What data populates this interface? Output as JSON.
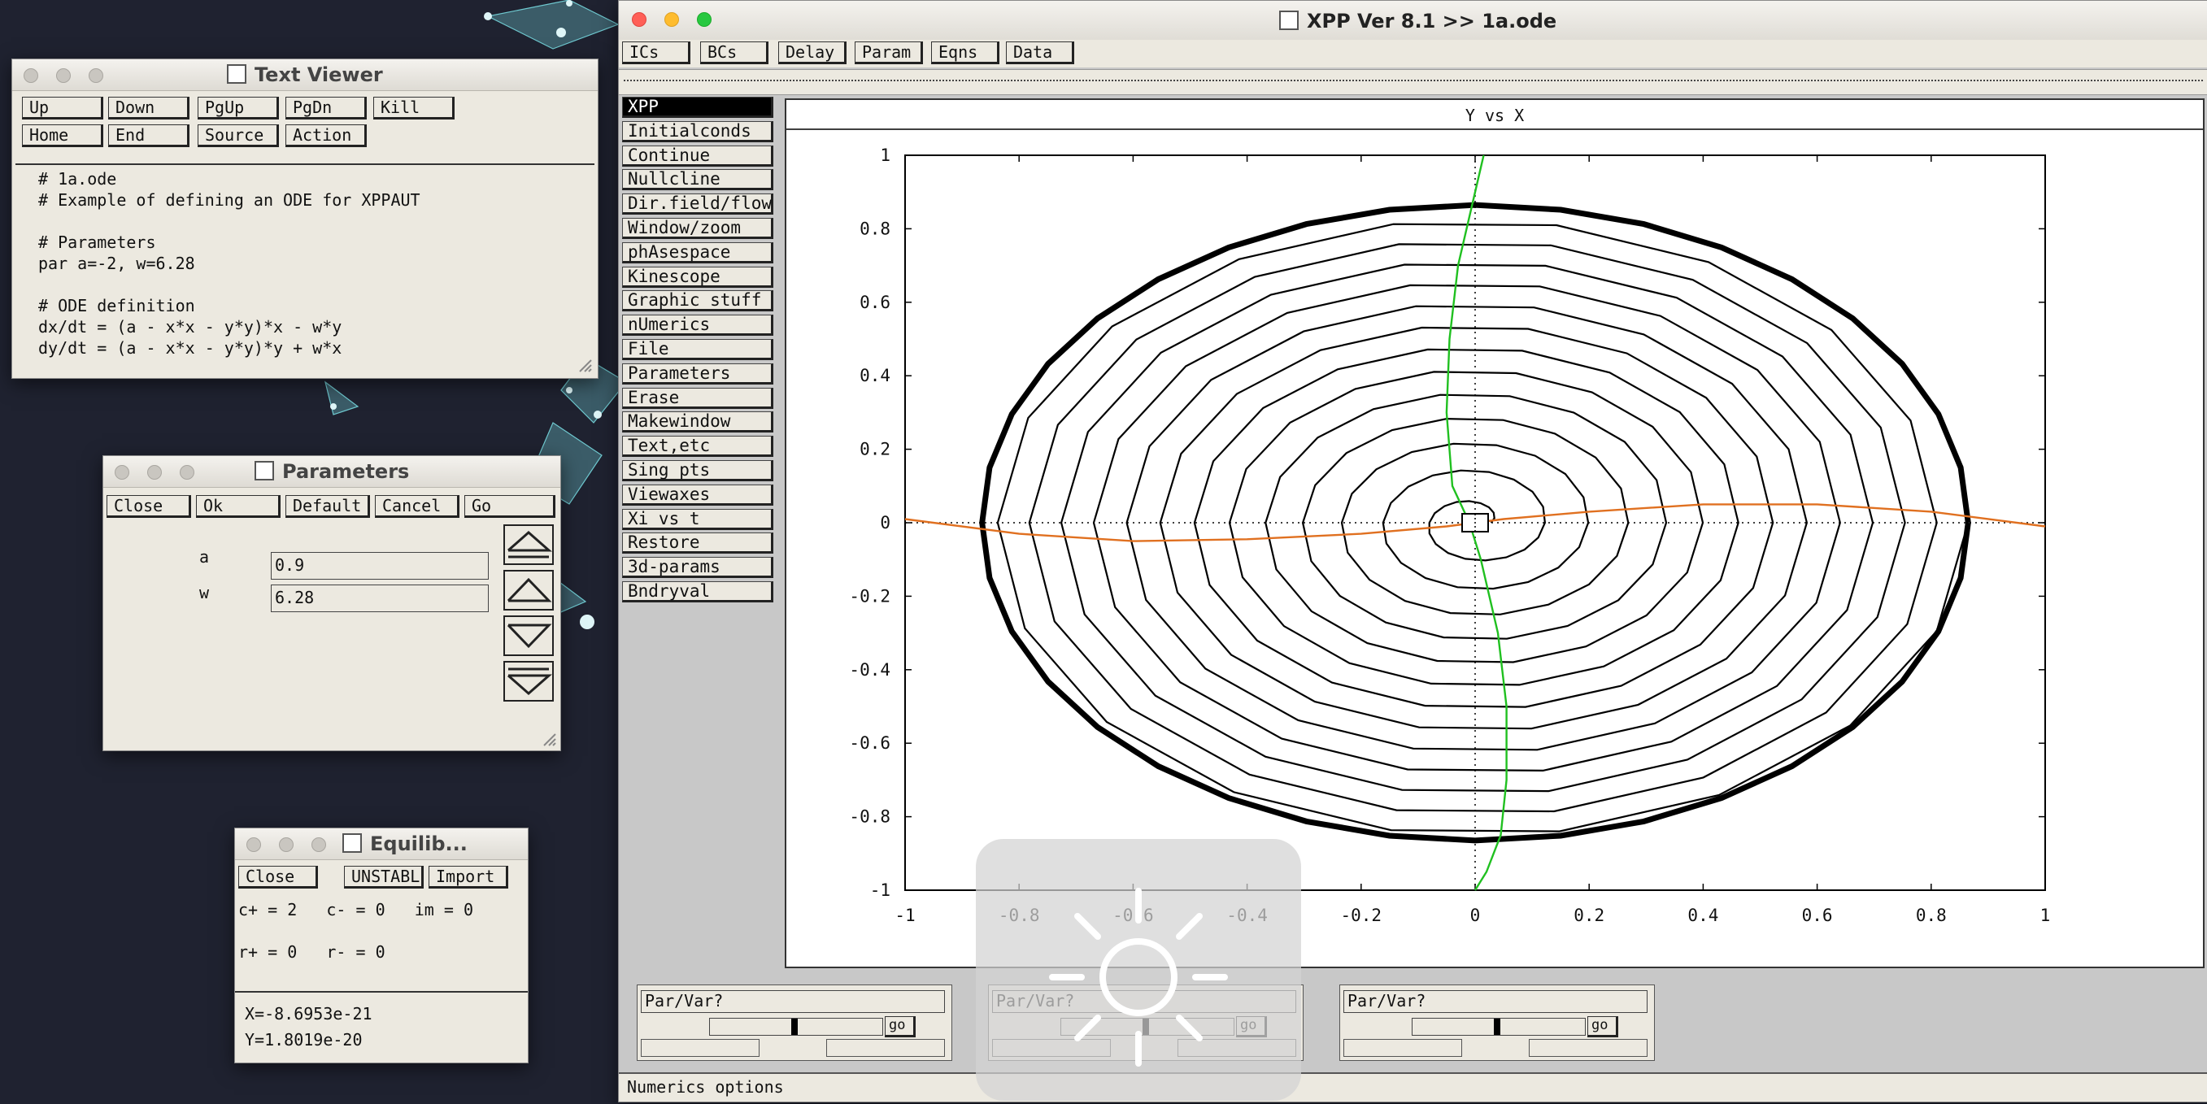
{
  "desktop": {
    "background": "#1f2230",
    "accent": "#6fc9d0"
  },
  "text_viewer": {
    "title": "Text Viewer",
    "buttons_row1": [
      "Up",
      "Down",
      "PgUp",
      "PgDn",
      "Kill"
    ],
    "buttons_row2": [
      "Home",
      "End",
      "Source",
      "Action"
    ],
    "lines": [
      "# 1a.ode",
      "# Example of defining an ODE for XPPAUT",
      "",
      "# Parameters",
      "par a=-2, w=6.28",
      "",
      "# ODE definition",
      "dx/dt = (a - x*x - y*y)*x - w*y",
      "dy/dt = (a - x*x - y*y)*y + w*x"
    ]
  },
  "parameters": {
    "title": "Parameters",
    "buttons": [
      "Close",
      "Ok",
      "Default",
      "Cancel",
      "Go"
    ],
    "params": [
      {
        "name": "a",
        "value": "0.9"
      },
      {
        "name": "w",
        "value": "6.28"
      }
    ]
  },
  "equilib": {
    "title": "Equilib...",
    "buttons": [
      "Close",
      "UNSTABL",
      "Import"
    ],
    "line1": "c+ = 2   c- = 0   im = 0",
    "line2": "r+ = 0   r- = 0",
    "x_value": "X=-8.6953e-21",
    "y_value": "Y=1.8019e-20"
  },
  "xpp": {
    "title": "XPP Ver 8.1 >> 1a.ode",
    "toolbar": [
      "ICs",
      "BCs",
      "Delay",
      "Param",
      "Eqns",
      "Data"
    ],
    "menu": [
      "XPP",
      "Initialconds",
      "Continue",
      "Nullcline",
      "Dir.field/flow",
      "Window/zoom",
      "phAsespace",
      "Kinescope",
      "Graphic stuff",
      "nUmerics",
      "File",
      "Parameters",
      "Erase",
      "Makewindow",
      "Text,etc",
      "Sing pts",
      "Viewaxes",
      "Xi vs t",
      "Restore",
      "3d-params",
      "Bndryval"
    ],
    "selected_menu": "XPP",
    "sliders": [
      {
        "label": "Par/Var?",
        "go": "go"
      },
      {
        "label": "Par/Var?",
        "go": "go"
      },
      {
        "label": "Par/Var?",
        "go": "go"
      }
    ],
    "status": "Numerics options"
  },
  "chart_data": {
    "type": "line",
    "title": "Y vs X",
    "xlabel": "",
    "ylabel": "",
    "xlim": [
      -1,
      1
    ],
    "ylim": [
      -1,
      1
    ],
    "xticks": [
      "-1",
      "-0.8",
      "-0.6",
      "-0.4",
      "-0.2",
      "0",
      "0.2",
      "0.4",
      "0.6",
      "0.8",
      "1"
    ],
    "yticks": [
      "1",
      "0.8",
      "0.6",
      "0.4",
      "0.2",
      "0",
      "-0.2",
      "-0.4",
      "-0.6",
      "-0.8",
      "-1"
    ],
    "grid": false,
    "series": [
      {
        "kind": "trajectory",
        "color": "#000000",
        "r_start": 0.03,
        "r_end": 0.93,
        "turns": 13,
        "x_scale": 0.93,
        "y_scale": 0.93
      },
      {
        "kind": "x-nullcline",
        "color": "#20c020",
        "x": [
          0.015,
          0.0,
          -0.03,
          -0.045,
          -0.05,
          -0.04,
          -0.01,
          0.01,
          0.04,
          0.055,
          0.055,
          0.045,
          0.02,
          0.0
        ],
        "y": [
          1.0,
          0.9,
          0.7,
          0.5,
          0.3,
          0.1,
          0.0,
          -0.1,
          -0.3,
          -0.5,
          -0.7,
          -0.85,
          -0.95,
          -1.0
        ]
      },
      {
        "kind": "y-nullcline",
        "color": "#e07020",
        "x": [
          -1.0,
          -0.8,
          -0.6,
          -0.4,
          -0.2,
          -0.05,
          0.05,
          0.2,
          0.4,
          0.6,
          0.8,
          1.0
        ],
        "y": [
          0.01,
          -0.03,
          -0.05,
          -0.045,
          -0.03,
          -0.01,
          0.01,
          0.03,
          0.05,
          0.05,
          0.03,
          -0.01
        ]
      }
    ],
    "equilibrium": {
      "x": 0,
      "y": 0
    }
  }
}
